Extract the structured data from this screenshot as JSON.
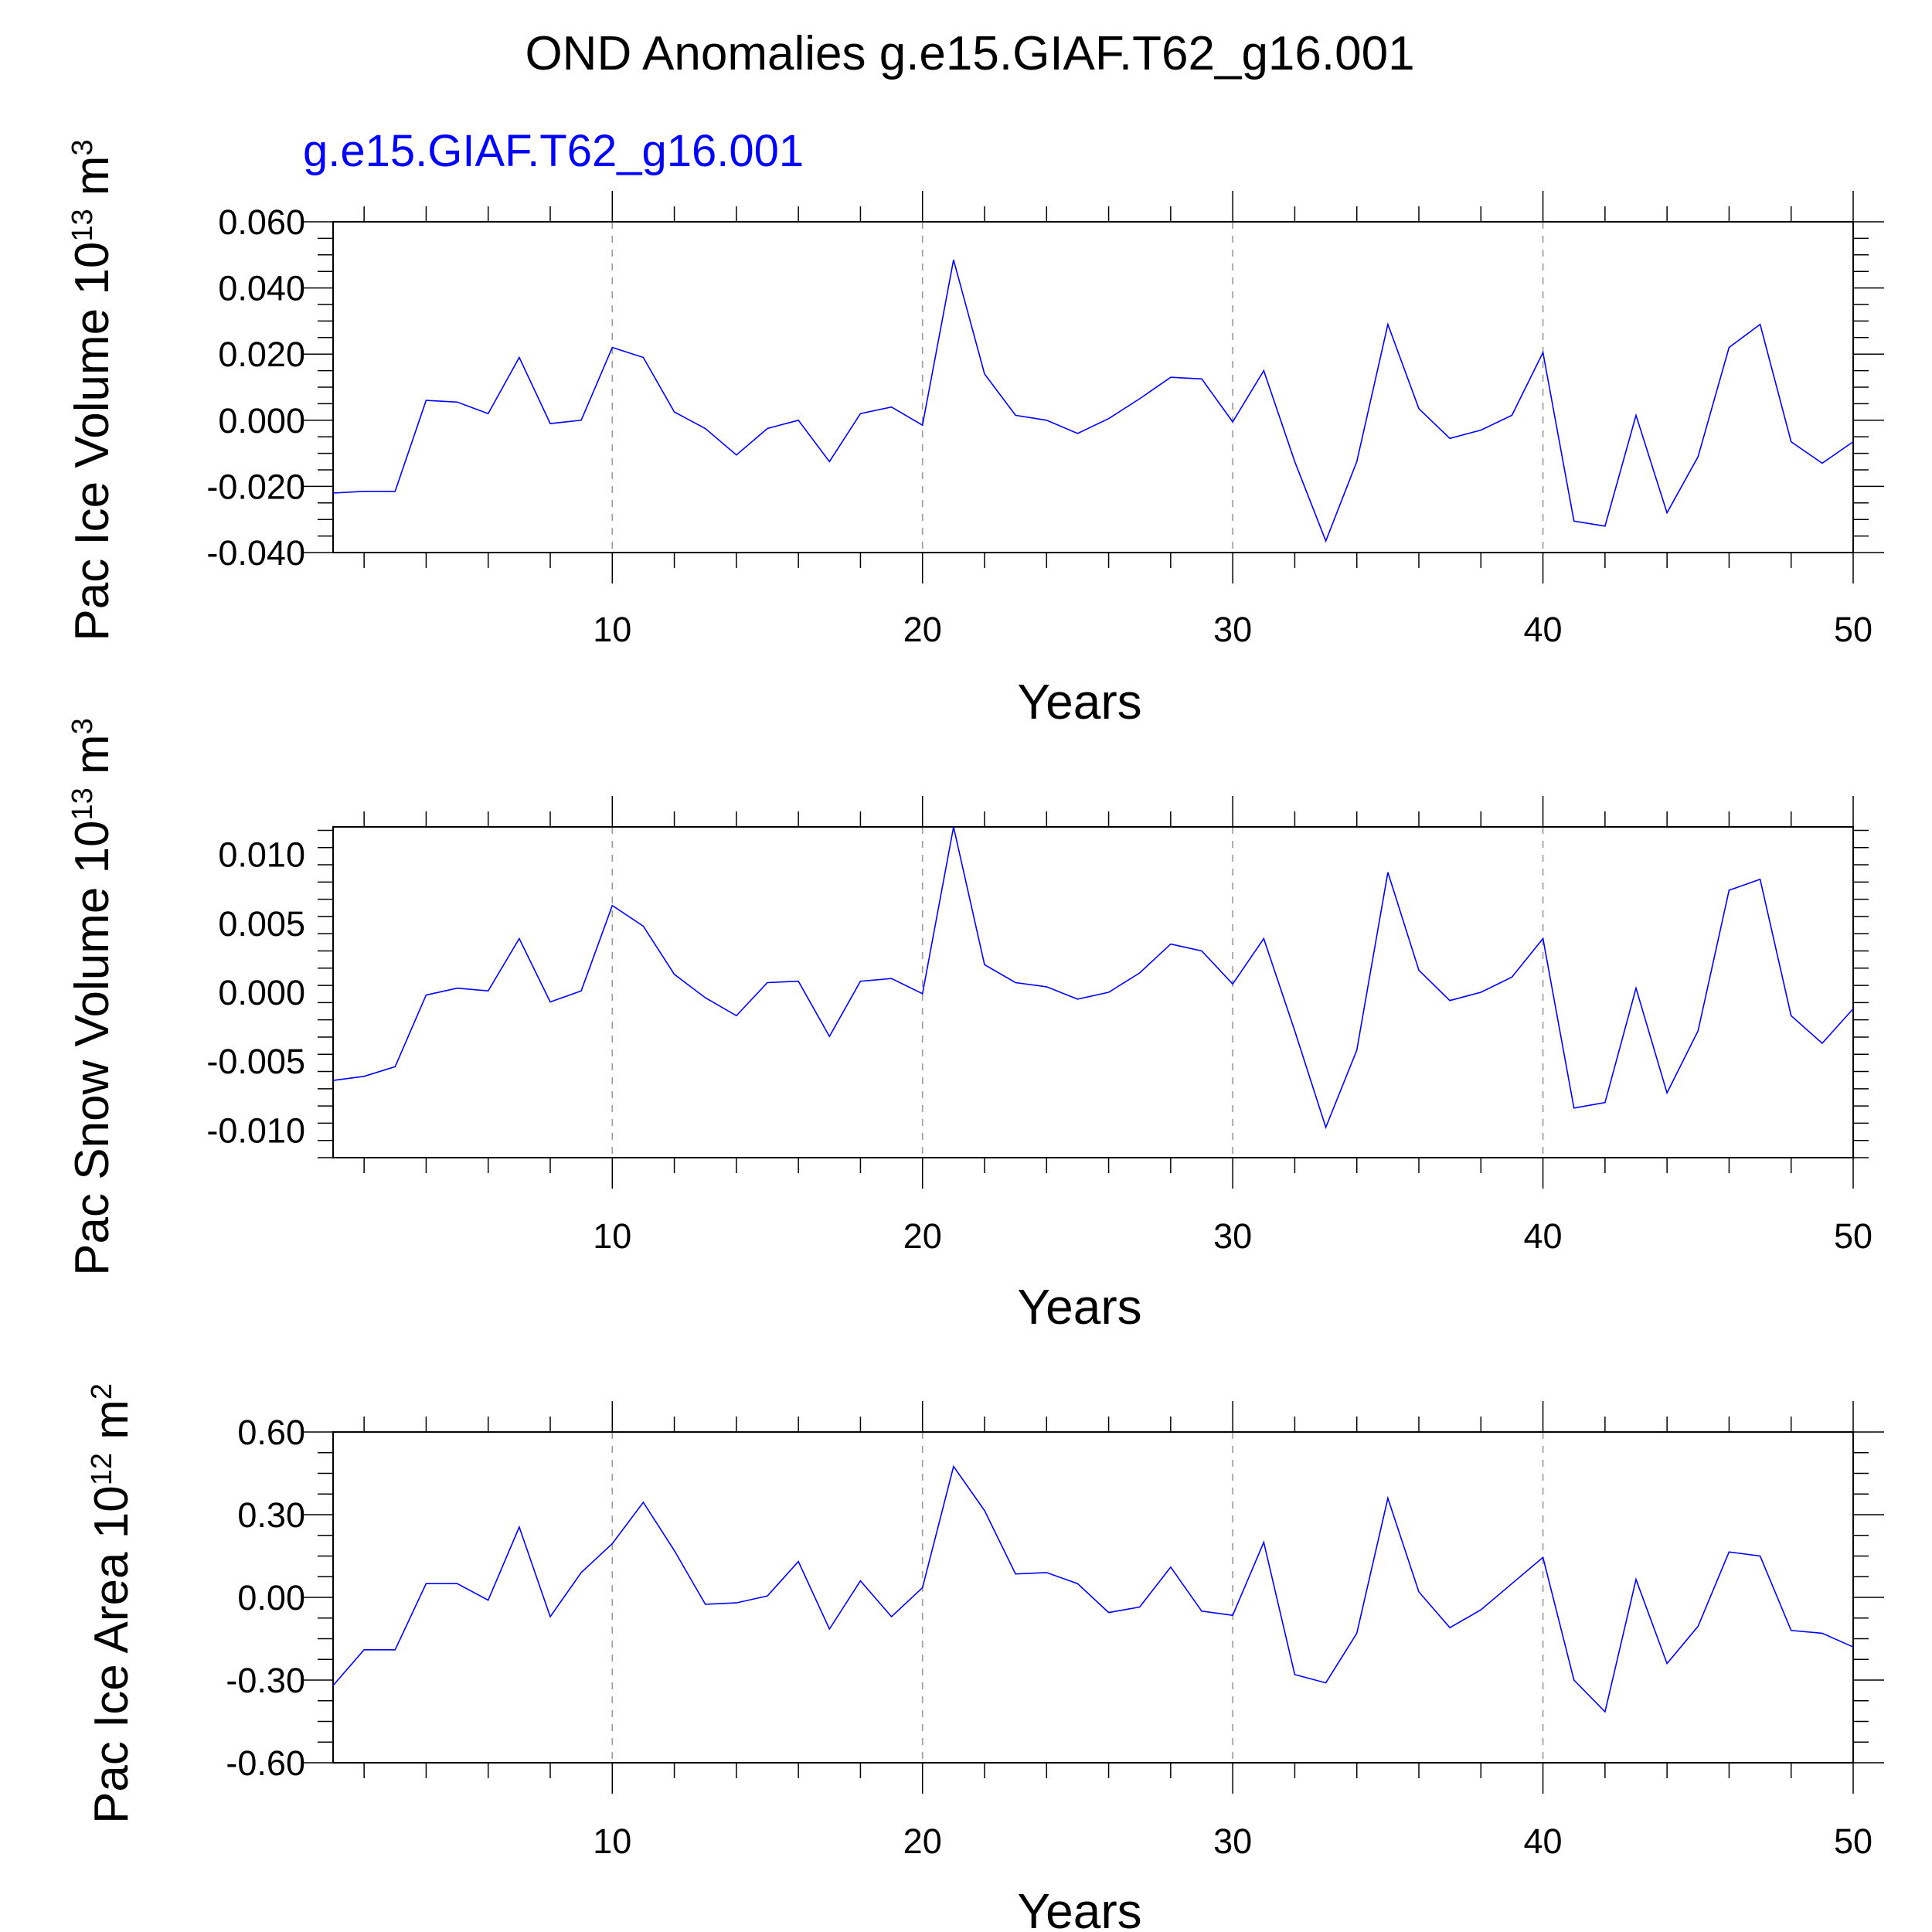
{
  "title": "OND Anomalies g.e15.GIAF.T62_g16.001",
  "subtitle": "g.e15.GIAF.T62_g16.001",
  "colors": {
    "line": "#0000ff",
    "subtitle": "#0000ff",
    "grid": "#9a9a9a",
    "text": "#000000"
  },
  "chart_data": [
    {
      "type": "line",
      "ylabel": {
        "main": "Pac Ice Volume 10",
        "exp": "13",
        "unit": " m",
        "unit_exp": "3"
      },
      "xlabel": "Years",
      "xlim": [
        1,
        50
      ],
      "ylim": [
        -0.04,
        0.06
      ],
      "x_ticks": [
        10,
        20,
        30,
        40,
        50
      ],
      "x_tick_labels": [
        "10",
        "20",
        "30",
        "40",
        "50"
      ],
      "y_ticks": [
        -0.04,
        -0.02,
        0.0,
        0.02,
        0.04,
        0.06
      ],
      "y_tick_labels": [
        "-0.040",
        "-0.020",
        "0.000",
        "0.020",
        "0.040",
        "0.060"
      ],
      "grid_x": [
        10,
        20,
        30,
        40
      ],
      "x": [
        1,
        2,
        3,
        4,
        5,
        6,
        7,
        8,
        9,
        10,
        11,
        12,
        13,
        14,
        15,
        16,
        17,
        18,
        19,
        20,
        21,
        22,
        23,
        24,
        25,
        26,
        27,
        28,
        29,
        30,
        31,
        32,
        33,
        34,
        35,
        36,
        37,
        38,
        39,
        40,
        41,
        42,
        43,
        44,
        45,
        46,
        47,
        48,
        49,
        50
      ],
      "values": [
        -0.022,
        -0.0215,
        -0.0215,
        0.006,
        0.0055,
        0.002,
        0.019,
        -0.001,
        0.0,
        0.022,
        0.019,
        0.0025,
        -0.0025,
        -0.0105,
        -0.0025,
        0.0,
        -0.0125,
        0.002,
        0.004,
        -0.0015,
        0.0485,
        0.014,
        0.0015,
        0.0,
        -0.004,
        0.0005,
        0.0065,
        0.013,
        0.0125,
        -0.0005,
        0.015,
        -0.0125,
        -0.0365,
        -0.0125,
        0.029,
        0.0035,
        -0.0055,
        -0.003,
        0.0015,
        0.0205,
        -0.0305,
        -0.032,
        0.0015,
        -0.028,
        -0.011,
        0.022,
        0.029,
        -0.0065,
        -0.013,
        -0.0065
      ]
    },
    {
      "type": "line",
      "ylabel": {
        "main": "Pac Snow Volume 10",
        "exp": "13",
        "unit": " m",
        "unit_exp": "3"
      },
      "xlabel": "Years",
      "xlim": [
        1,
        50
      ],
      "ylim": [
        -0.012,
        0.012
      ],
      "x_ticks": [
        10,
        20,
        30,
        40,
        50
      ],
      "x_tick_labels": [
        "10",
        "20",
        "30",
        "40",
        "50"
      ],
      "y_ticks": [
        -0.01,
        -0.005,
        0.0,
        0.005,
        0.01
      ],
      "y_tick_labels": [
        "-0.010",
        "-0.005",
        "0.000",
        "0.005",
        "0.010"
      ],
      "grid_x": [
        10,
        20,
        30,
        40
      ],
      "x": [
        1,
        2,
        3,
        4,
        5,
        6,
        7,
        8,
        9,
        10,
        11,
        12,
        13,
        14,
        15,
        16,
        17,
        18,
        19,
        20,
        21,
        22,
        23,
        24,
        25,
        26,
        27,
        28,
        29,
        30,
        31,
        32,
        33,
        34,
        35,
        36,
        37,
        38,
        39,
        40,
        41,
        42,
        43,
        44,
        45,
        46,
        47,
        48,
        49,
        50
      ],
      "values": [
        -0.0064,
        -0.0061,
        -0.0054,
        -0.0002,
        0.0003,
        0.0001,
        0.0039,
        -0.0007,
        0.0001,
        0.0063,
        0.0048,
        0.0013,
        -0.0004,
        -0.0017,
        0.0007,
        0.0008,
        -0.0032,
        0.0008,
        0.001,
        -0.0001,
        0.012,
        0.002,
        0.0007,
        0.0004,
        -0.0005,
        0.0,
        0.0014,
        0.0035,
        0.003,
        0.0006,
        0.0039,
        -0.0028,
        -0.0098,
        -0.0042,
        0.0087,
        0.0016,
        -0.0006,
        0.0,
        0.0011,
        0.0039,
        -0.0084,
        -0.008,
        0.0003,
        -0.0073,
        -0.0028,
        0.0074,
        0.0082,
        -0.0017,
        -0.0037,
        -0.0012
      ]
    },
    {
      "type": "line",
      "ylabel": {
        "main": "Pac Ice Area 10",
        "exp": "12",
        "unit": " m",
        "unit_exp": "2"
      },
      "xlabel": "Years",
      "xlim": [
        1,
        50
      ],
      "ylim": [
        -0.6,
        0.6
      ],
      "x_ticks": [
        10,
        20,
        30,
        40,
        50
      ],
      "x_tick_labels": [
        "10",
        "20",
        "30",
        "40",
        "50"
      ],
      "y_ticks": [
        -0.6,
        -0.3,
        0.0,
        0.3,
        0.6
      ],
      "y_tick_labels": [
        "-0.60",
        "-0.30",
        "0.00",
        "0.30",
        "0.60"
      ],
      "grid_x": [
        10,
        20,
        30,
        40
      ],
      "x": [
        1,
        2,
        3,
        4,
        5,
        6,
        7,
        8,
        9,
        10,
        11,
        12,
        13,
        14,
        15,
        16,
        17,
        18,
        19,
        20,
        21,
        22,
        23,
        24,
        25,
        26,
        27,
        28,
        29,
        30,
        31,
        32,
        33,
        34,
        35,
        36,
        37,
        38,
        39,
        40,
        41,
        42,
        43,
        44,
        45,
        46,
        47,
        48,
        49,
        50
      ],
      "values": [
        -0.32,
        -0.19,
        -0.19,
        0.05,
        0.05,
        -0.01,
        0.255,
        -0.07,
        0.09,
        0.195,
        0.345,
        0.17,
        -0.025,
        -0.02,
        0.005,
        0.13,
        -0.115,
        0.06,
        -0.07,
        0.035,
        0.475,
        0.315,
        0.085,
        0.09,
        0.05,
        -0.055,
        -0.035,
        0.11,
        -0.05,
        -0.065,
        0.2,
        -0.28,
        -0.31,
        -0.13,
        0.36,
        0.02,
        -0.11,
        -0.045,
        0.05,
        0.145,
        -0.3,
        -0.415,
        0.065,
        -0.24,
        -0.105,
        0.165,
        0.15,
        -0.12,
        -0.13,
        -0.18
      ]
    }
  ]
}
